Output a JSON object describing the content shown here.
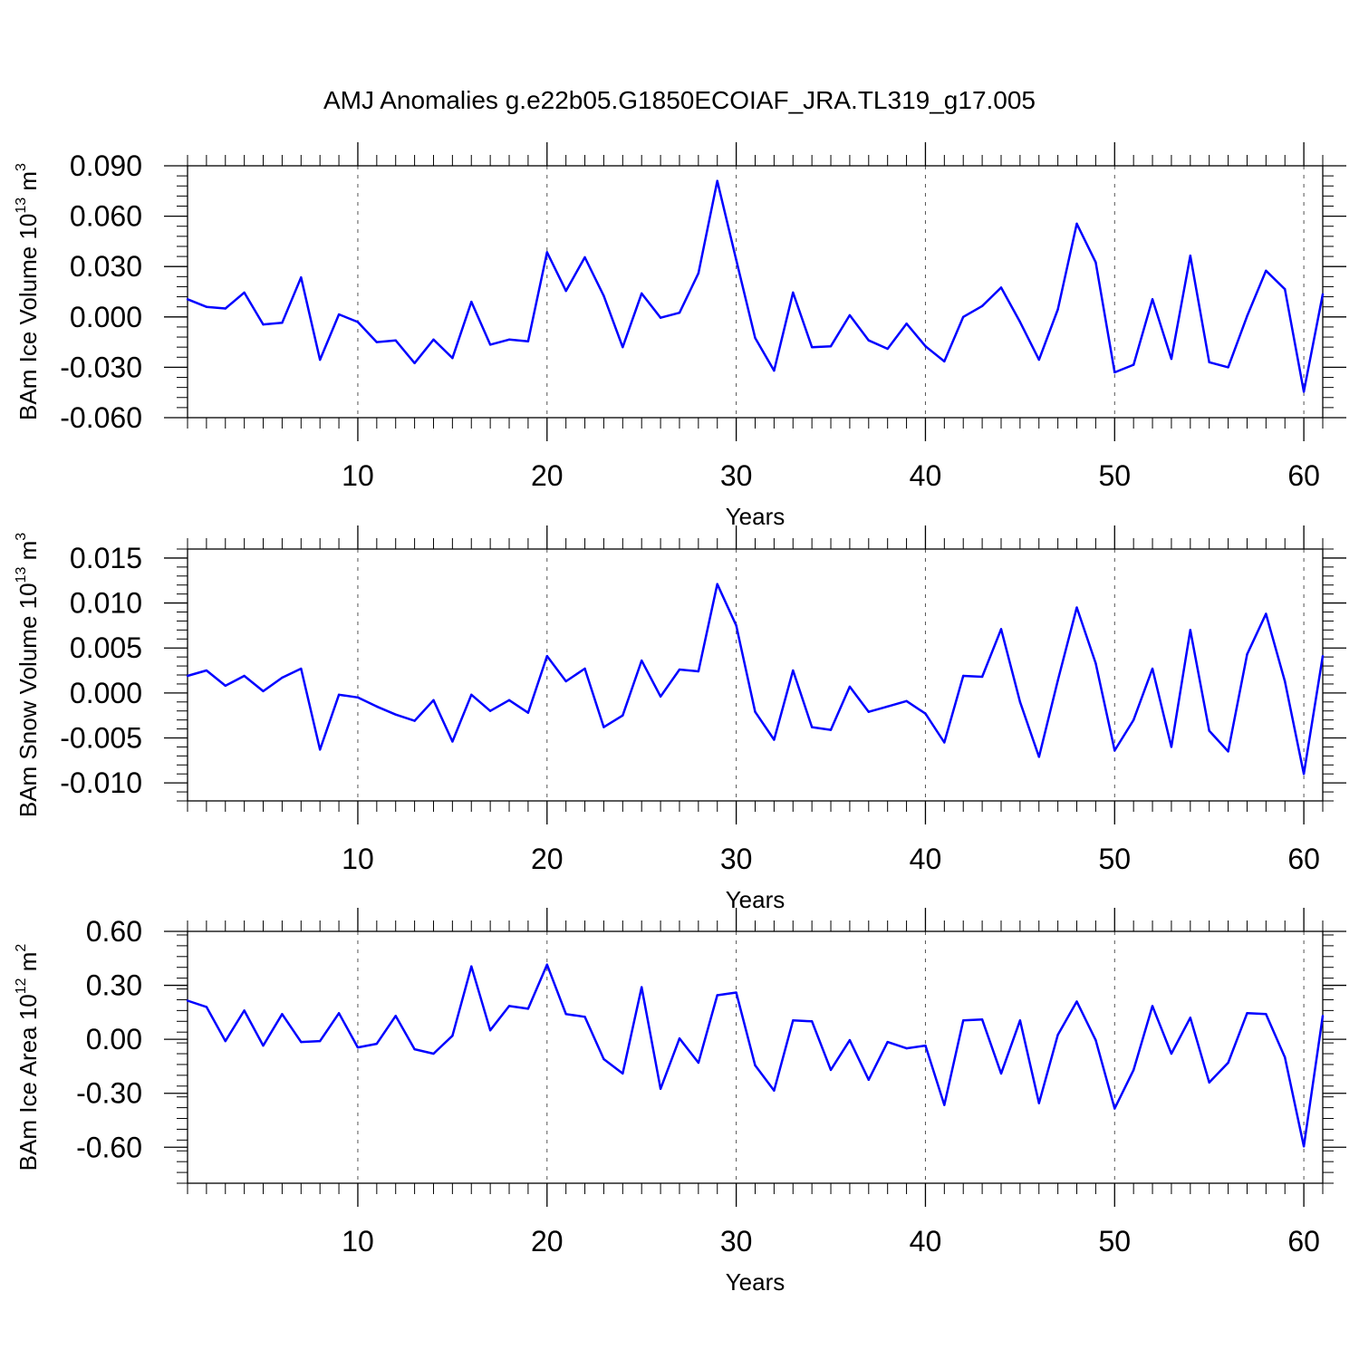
{
  "figure_title": "AMJ Anomalies g.e22b05.G1850ECOIAF_JRA.TL319_g17.005",
  "colors": {
    "series": "#0000ff",
    "axes": "#000000",
    "grid": "#555555"
  },
  "chart_data": [
    {
      "type": "line",
      "ylabel": {
        "main": "BAm Ice Volume 10",
        "exp": "13",
        "unit": " m",
        "unit_exp": "3"
      },
      "xlabel": "Years",
      "xlim": [
        1,
        61
      ],
      "ylim": [
        -0.06,
        0.09
      ],
      "xticks": [
        10,
        20,
        30,
        40,
        50,
        60
      ],
      "xtick_labels": [
        "10",
        "20",
        "30",
        "40",
        "50",
        "60"
      ],
      "yticks": [
        -0.06,
        -0.03,
        0.0,
        0.03,
        0.06,
        0.09
      ],
      "ytick_labels": [
        "-0.060",
        "-0.030",
        "0.000",
        "0.030",
        "0.060",
        "0.090"
      ],
      "grid": "vertical dashed at major x ticks",
      "series": [
        {
          "x": [
            1,
            2,
            3,
            4,
            5,
            6,
            7,
            8,
            9,
            10,
            11,
            12,
            13,
            14,
            15,
            16,
            17,
            18,
            19,
            20,
            21,
            22,
            23,
            24,
            25,
            26,
            27,
            28,
            29,
            30,
            31,
            32,
            33,
            34,
            35,
            36,
            37,
            38,
            39,
            40,
            41,
            42,
            43,
            44,
            45,
            46,
            47,
            48,
            49,
            50,
            51,
            52,
            53,
            54,
            55,
            56,
            57,
            58,
            59,
            60,
            61
          ],
          "values": [
            0.0105,
            0.006,
            0.005,
            0.0145,
            -0.0045,
            -0.0035,
            0.0235,
            -0.0255,
            0.0015,
            -0.003,
            -0.015,
            -0.014,
            -0.0275,
            -0.0135,
            -0.0245,
            0.009,
            -0.0165,
            -0.0135,
            -0.0145,
            0.0385,
            0.0155,
            0.0355,
            0.0125,
            -0.018,
            0.014,
            -0.0005,
            0.0025,
            0.026,
            0.081,
            0.034,
            -0.0125,
            -0.032,
            0.0145,
            -0.018,
            -0.0175,
            0.001,
            -0.014,
            -0.019,
            -0.004,
            -0.0175,
            -0.0265,
            0.0,
            0.0065,
            0.0175,
            -0.003,
            -0.0255,
            0.0045,
            0.0555,
            0.0325,
            -0.033,
            -0.0285,
            0.0105,
            -0.025,
            0.0365,
            -0.027,
            -0.03,
            0.0005,
            0.0275,
            0.0165,
            -0.0445,
            0.0135
          ]
        }
      ]
    },
    {
      "type": "line",
      "ylabel": {
        "main": "BAm Snow Volume 10",
        "exp": "13",
        "unit": " m",
        "unit_exp": "3"
      },
      "xlabel": "Years",
      "xlim": [
        1,
        61
      ],
      "ylim": [
        -0.012,
        0.016
      ],
      "xticks": [
        10,
        20,
        30,
        40,
        50,
        60
      ],
      "xtick_labels": [
        "10",
        "20",
        "30",
        "40",
        "50",
        "60"
      ],
      "yticks": [
        -0.01,
        -0.005,
        0.0,
        0.005,
        0.01,
        0.015
      ],
      "ytick_labels": [
        "-0.010",
        "-0.005",
        "0.000",
        "0.005",
        "0.010",
        "0.015"
      ],
      "grid": "vertical dashed at major x ticks",
      "series": [
        {
          "x": [
            1,
            2,
            3,
            4,
            5,
            6,
            7,
            8,
            9,
            10,
            11,
            12,
            13,
            14,
            15,
            16,
            17,
            18,
            19,
            20,
            21,
            22,
            23,
            24,
            25,
            26,
            27,
            28,
            29,
            30,
            31,
            32,
            33,
            34,
            35,
            36,
            37,
            38,
            39,
            40,
            41,
            42,
            43,
            44,
            45,
            46,
            47,
            48,
            49,
            50,
            51,
            52,
            53,
            54,
            55,
            56,
            57,
            58,
            59,
            60,
            61
          ],
          "values": [
            0.0019,
            0.0025,
            0.0008,
            0.0019,
            0.0002,
            0.0017,
            0.0027,
            -0.0063,
            -0.0002,
            -0.0005,
            -0.0015,
            -0.0024,
            -0.0031,
            -0.0008,
            -0.0054,
            -0.0002,
            -0.002,
            -0.0008,
            -0.0022,
            0.0041,
            0.0013,
            0.0027,
            -0.0038,
            -0.0025,
            0.0036,
            -0.0004,
            0.0026,
            0.0024,
            0.0121,
            0.0075,
            -0.0021,
            -0.0052,
            0.0025,
            -0.0038,
            -0.0041,
            0.0007,
            -0.0021,
            -0.0015,
            -0.0009,
            -0.0023,
            -0.0055,
            0.0019,
            0.0018,
            0.0071,
            -0.001,
            -0.0071,
            0.0014,
            0.0095,
            0.0033,
            -0.0064,
            -0.003,
            0.0027,
            -0.006,
            0.007,
            -0.0042,
            -0.0065,
            0.0043,
            0.0088,
            0.0013,
            -0.009,
            0.0041
          ]
        }
      ]
    },
    {
      "type": "line",
      "ylabel": {
        "main": "BAm Ice Area 10",
        "exp": "12",
        "unit": " m",
        "unit_exp": "2"
      },
      "xlabel": "Years",
      "xlim": [
        1,
        61
      ],
      "ylim": [
        -0.8,
        0.6
      ],
      "xticks": [
        10,
        20,
        30,
        40,
        50,
        60
      ],
      "xtick_labels": [
        "10",
        "20",
        "30",
        "40",
        "50",
        "60"
      ],
      "yticks": [
        -0.6,
        -0.3,
        0.0,
        0.3,
        0.6
      ],
      "ytick_labels": [
        "-0.60",
        "-0.30",
        "0.00",
        "0.30",
        "0.60"
      ],
      "grid": "vertical dashed at major x ticks",
      "series": [
        {
          "x": [
            1,
            2,
            3,
            4,
            5,
            6,
            7,
            8,
            9,
            10,
            11,
            12,
            13,
            14,
            15,
            16,
            17,
            18,
            19,
            20,
            21,
            22,
            23,
            24,
            25,
            26,
            27,
            28,
            29,
            30,
            31,
            32,
            33,
            34,
            35,
            36,
            37,
            38,
            39,
            40,
            41,
            42,
            43,
            44,
            45,
            46,
            47,
            48,
            49,
            50,
            51,
            52,
            53,
            54,
            55,
            56,
            57,
            58,
            59,
            60,
            61
          ],
          "values": [
            0.215,
            0.18,
            -0.01,
            0.16,
            -0.035,
            0.14,
            -0.015,
            -0.01,
            0.145,
            -0.045,
            -0.025,
            0.13,
            -0.055,
            -0.08,
            0.02,
            0.405,
            0.05,
            0.185,
            0.17,
            0.415,
            0.14,
            0.125,
            -0.11,
            -0.19,
            0.29,
            -0.275,
            0.005,
            -0.13,
            0.245,
            0.26,
            -0.145,
            -0.285,
            0.105,
            0.1,
            -0.17,
            -0.005,
            -0.225,
            -0.015,
            -0.05,
            -0.035,
            -0.365,
            0.105,
            0.11,
            -0.19,
            0.105,
            -0.355,
            0.025,
            0.21,
            -0.005,
            -0.385,
            -0.17,
            0.185,
            -0.08,
            0.12,
            -0.24,
            -0.13,
            0.145,
            0.14,
            -0.1,
            -0.595,
            0.13
          ]
        }
      ]
    }
  ]
}
